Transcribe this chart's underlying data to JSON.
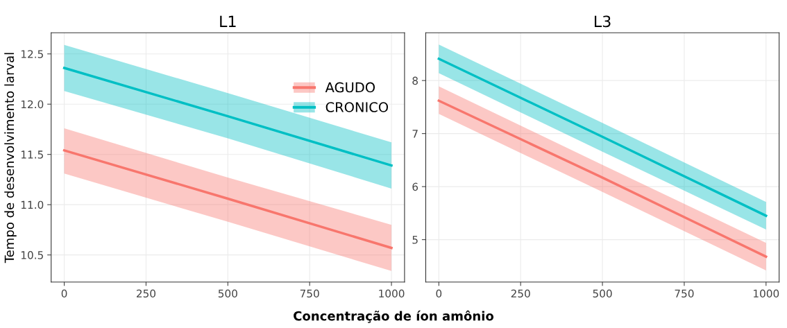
{
  "chart_data": [
    {
      "type": "line",
      "title": "L1",
      "xlabel": "Concentração de íon amônio",
      "ylabel": "Tempo de desenvolvimento larval",
      "x": [
        0,
        500,
        1000
      ],
      "xlim": [
        -40,
        1040
      ],
      "xticks": [
        0,
        250,
        500,
        750,
        1000
      ],
      "ylim": [
        10.23,
        12.71
      ],
      "yticks": [
        10.5,
        {
          "value": 11,
          "label": "11.0"
        },
        11.5,
        {
          "value": 12,
          "label": "12.0"
        },
        12.5
      ],
      "grid": true,
      "legend": "top right",
      "series": [
        {
          "name": "AGUDO",
          "color": "#f8766d",
          "values": [
            11.54,
            11.06,
            10.57
          ],
          "lower": [
            11.31,
            10.83,
            10.34
          ],
          "upper": [
            11.76,
            11.27,
            10.8
          ]
        },
        {
          "name": "CRONICO",
          "color": "#00bfc4",
          "values": [
            12.36,
            11.88,
            11.39
          ],
          "lower": [
            12.13,
            11.66,
            11.16
          ],
          "upper": [
            12.59,
            12.11,
            11.62
          ]
        }
      ]
    },
    {
      "type": "line",
      "title": "L3",
      "x": [
        0,
        500,
        1000
      ],
      "xlim": [
        -40,
        1040
      ],
      "xticks": [
        0,
        250,
        500,
        750,
        1000
      ],
      "ylim": [
        4.2,
        8.9
      ],
      "yticks": [
        5,
        6,
        7,
        8
      ],
      "grid": true,
      "series": [
        {
          "color": "#f8766d",
          "values": [
            7.62,
            6.17,
            4.68
          ],
          "lower": [
            7.37,
            5.9,
            4.42
          ],
          "upper": [
            7.89,
            6.41,
            4.94
          ]
        },
        {
          "color": "#00bfc4",
          "values": [
            8.41,
            6.94,
            5.45
          ],
          "lower": [
            8.14,
            6.66,
            5.19
          ],
          "upper": [
            8.68,
            7.2,
            5.71
          ]
        }
      ]
    }
  ]
}
